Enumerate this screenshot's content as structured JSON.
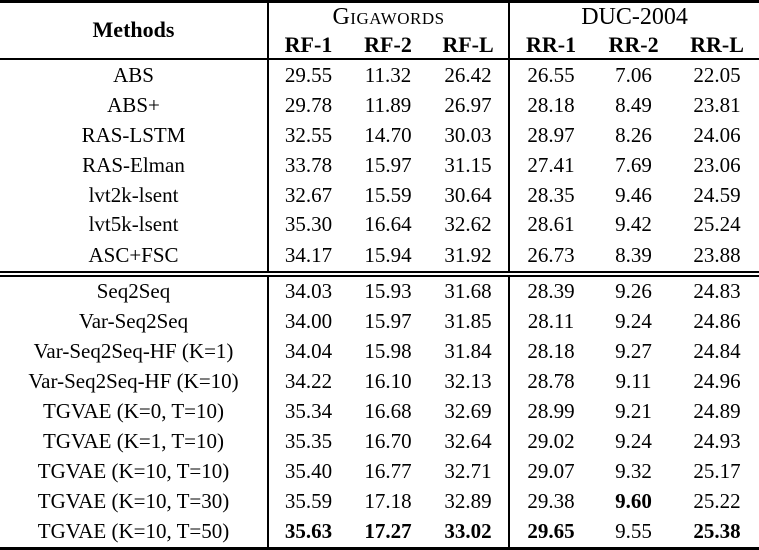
{
  "colors": {
    "text": "#000000",
    "background": "#ffffff",
    "rule": "#000000"
  },
  "table": {
    "methods_header": "Methods",
    "groups": [
      {
        "label": "Gigawords",
        "smallcaps": true,
        "cols": [
          "RF-1",
          "RF-2",
          "RF-L"
        ]
      },
      {
        "label": "DUC-2004",
        "smallcaps": false,
        "cols": [
          "RR-1",
          "RR-2",
          "RR-L"
        ]
      }
    ],
    "sections": [
      {
        "rows": [
          {
            "method": "ABS",
            "values": [
              "29.55",
              "11.32",
              "26.42",
              "26.55",
              "7.06",
              "22.05"
            ],
            "bold": []
          },
          {
            "method": "ABS+",
            "values": [
              "29.78",
              "11.89",
              "26.97",
              "28.18",
              "8.49",
              "23.81"
            ],
            "bold": []
          },
          {
            "method": "RAS-LSTM",
            "values": [
              "32.55",
              "14.70",
              "30.03",
              "28.97",
              "8.26",
              "24.06"
            ],
            "bold": []
          },
          {
            "method": "RAS-Elman",
            "values": [
              "33.78",
              "15.97",
              "31.15",
              "27.41",
              "7.69",
              "23.06"
            ],
            "bold": []
          },
          {
            "method": "lvt2k-lsent",
            "values": [
              "32.67",
              "15.59",
              "30.64",
              "28.35",
              "9.46",
              "24.59"
            ],
            "bold": []
          },
          {
            "method": "lvt5k-lsent",
            "values": [
              "35.30",
              "16.64",
              "32.62",
              "28.61",
              "9.42",
              "25.24"
            ],
            "bold": []
          },
          {
            "method": "ASC+FSC",
            "values": [
              "34.17",
              "15.94",
              "31.92",
              "26.73",
              "8.39",
              "23.88"
            ],
            "bold": []
          }
        ]
      },
      {
        "rows": [
          {
            "method": "Seq2Seq",
            "values": [
              "34.03",
              "15.93",
              "31.68",
              "28.39",
              "9.26",
              "24.83"
            ],
            "bold": []
          },
          {
            "method": "Var-Seq2Seq",
            "values": [
              "34.00",
              "15.97",
              "31.85",
              "28.11",
              "9.24",
              "24.86"
            ],
            "bold": []
          },
          {
            "method": "Var-Seq2Seq-HF (K=1)",
            "values": [
              "34.04",
              "15.98",
              "31.84",
              "28.18",
              "9.27",
              "24.84"
            ],
            "bold": []
          },
          {
            "method": "Var-Seq2Seq-HF (K=10)",
            "values": [
              "34.22",
              "16.10",
              "32.13",
              "28.78",
              "9.11",
              "24.96"
            ],
            "bold": []
          },
          {
            "method": "TGVAE (K=0, T=10)",
            "values": [
              "35.34",
              "16.68",
              "32.69",
              "28.99",
              "9.21",
              "24.89"
            ],
            "bold": []
          },
          {
            "method": "TGVAE (K=1, T=10)",
            "values": [
              "35.35",
              "16.70",
              "32.64",
              "29.02",
              "9.24",
              "24.93"
            ],
            "bold": []
          },
          {
            "method": "TGVAE (K=10, T=10)",
            "values": [
              "35.40",
              "16.77",
              "32.71",
              "29.07",
              "9.32",
              "25.17"
            ],
            "bold": []
          },
          {
            "method": "TGVAE (K=10, T=30)",
            "values": [
              "35.59",
              "17.18",
              "32.89",
              "29.38",
              "9.60",
              "25.22"
            ],
            "bold": [
              4
            ]
          },
          {
            "method": "TGVAE (K=10, T=50)",
            "values": [
              "35.63",
              "17.27",
              "33.02",
              "29.65",
              "9.55",
              "25.38"
            ],
            "bold": [
              0,
              1,
              2,
              3,
              5
            ]
          }
        ]
      }
    ]
  }
}
